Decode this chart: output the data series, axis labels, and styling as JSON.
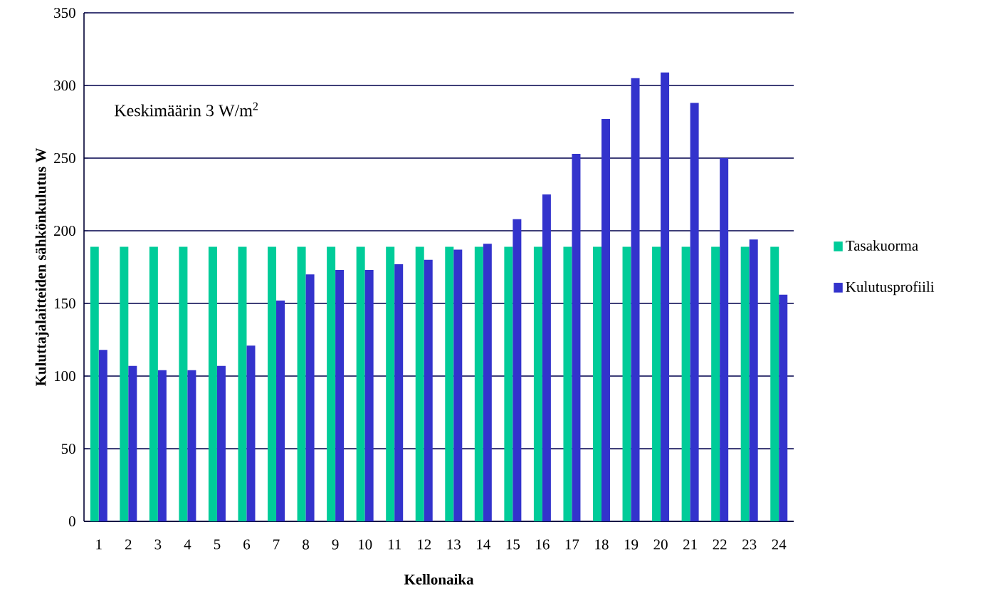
{
  "chart_data": {
    "type": "bar",
    "xlabel": "Kellonaika",
    "ylabel": "Kuluttajalaitteiden sähkönkulutus W",
    "annotations": [
      "Keskimäärin 3 W/m$^{2}$"
    ],
    "categories": [
      "1",
      "2",
      "3",
      "4",
      "5",
      "6",
      "7",
      "8",
      "9",
      "10",
      "11",
      "12",
      "13",
      "14",
      "15",
      "16",
      "17",
      "18",
      "19",
      "20",
      "21",
      "22",
      "23",
      "24"
    ],
    "series": [
      {
        "name": "Tasakuorma",
        "color": "#00cc99",
        "values": [
          189,
          189,
          189,
          189,
          189,
          189,
          189,
          189,
          189,
          189,
          189,
          189,
          189,
          189,
          189,
          189,
          189,
          189,
          189,
          189,
          189,
          189,
          189,
          189
        ]
      },
      {
        "name": "Kulutusprofiili",
        "color": "#3333cc",
        "values": [
          118,
          107,
          104,
          104,
          107,
          121,
          152,
          170,
          173,
          173,
          177,
          180,
          187,
          191,
          208,
          225,
          253,
          277,
          305,
          309,
          288,
          250,
          194,
          156
        ]
      }
    ],
    "ylim": [
      0,
      350
    ],
    "yticks": [
      0,
      50,
      100,
      150,
      200,
      250,
      300,
      350
    ],
    "grid": "y",
    "legend": "right"
  }
}
